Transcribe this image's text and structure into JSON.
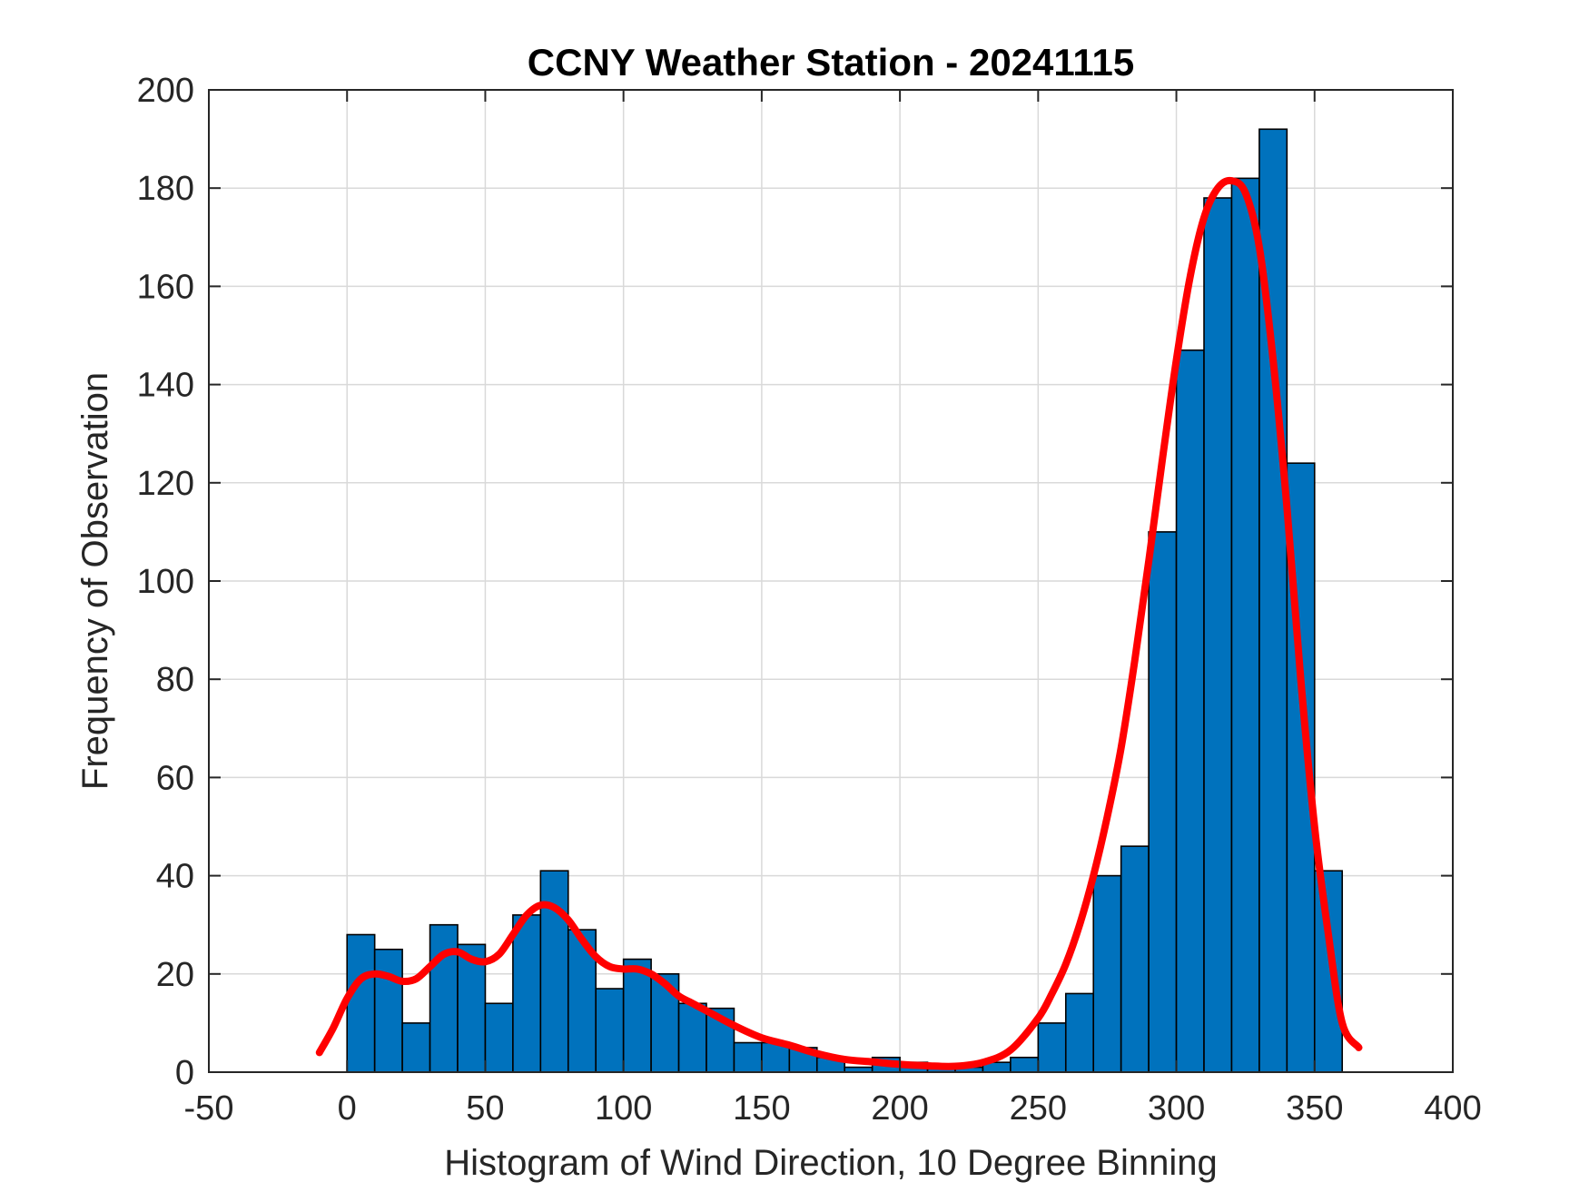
{
  "chart_data": {
    "type": "bar",
    "title": "CCNY Weather Station - 20241115",
    "xlabel": "Histogram of Wind Direction, 10 Degree Binning",
    "ylabel": "Frequency of Observation",
    "xlim": [
      -50,
      400
    ],
    "ylim": [
      0,
      200
    ],
    "xticks": [
      -50,
      0,
      50,
      100,
      150,
      200,
      250,
      300,
      350,
      400
    ],
    "yticks": [
      0,
      20,
      40,
      60,
      80,
      100,
      120,
      140,
      160,
      180,
      200
    ],
    "grid": true,
    "bin_width": 10,
    "bins": [
      {
        "start": 0,
        "value": 28
      },
      {
        "start": 10,
        "value": 25
      },
      {
        "start": 20,
        "value": 10
      },
      {
        "start": 30,
        "value": 30
      },
      {
        "start": 40,
        "value": 26
      },
      {
        "start": 50,
        "value": 14
      },
      {
        "start": 60,
        "value": 32
      },
      {
        "start": 70,
        "value": 41
      },
      {
        "start": 80,
        "value": 29
      },
      {
        "start": 90,
        "value": 17
      },
      {
        "start": 100,
        "value": 23
      },
      {
        "start": 110,
        "value": 20
      },
      {
        "start": 120,
        "value": 14
      },
      {
        "start": 130,
        "value": 13
      },
      {
        "start": 140,
        "value": 6
      },
      {
        "start": 150,
        "value": 6
      },
      {
        "start": 160,
        "value": 5
      },
      {
        "start": 170,
        "value": 3
      },
      {
        "start": 180,
        "value": 1
      },
      {
        "start": 190,
        "value": 3
      },
      {
        "start": 200,
        "value": 2
      },
      {
        "start": 210,
        "value": 1
      },
      {
        "start": 220,
        "value": 1
      },
      {
        "start": 230,
        "value": 2
      },
      {
        "start": 240,
        "value": 3
      },
      {
        "start": 250,
        "value": 10
      },
      {
        "start": 260,
        "value": 16
      },
      {
        "start": 270,
        "value": 40
      },
      {
        "start": 280,
        "value": 46
      },
      {
        "start": 290,
        "value": 110
      },
      {
        "start": 300,
        "value": 147
      },
      {
        "start": 310,
        "value": 178
      },
      {
        "start": 320,
        "value": 182
      },
      {
        "start": 330,
        "value": 192
      },
      {
        "start": 340,
        "value": 124
      },
      {
        "start": 350,
        "value": 41
      }
    ],
    "bar_color": "#0072BD",
    "fit_curve": {
      "name": "density fit",
      "color": "#FF0000",
      "points": [
        [
          -10,
          4
        ],
        [
          -5,
          9
        ],
        [
          0,
          15
        ],
        [
          5,
          19
        ],
        [
          10,
          20
        ],
        [
          15,
          19.5
        ],
        [
          20,
          18.5
        ],
        [
          25,
          19
        ],
        [
          30,
          21.5
        ],
        [
          35,
          24
        ],
        [
          40,
          24.5
        ],
        [
          45,
          23
        ],
        [
          50,
          22.5
        ],
        [
          55,
          24
        ],
        [
          60,
          28
        ],
        [
          65,
          32
        ],
        [
          70,
          34
        ],
        [
          75,
          33.5
        ],
        [
          80,
          31
        ],
        [
          85,
          27
        ],
        [
          90,
          23.5
        ],
        [
          95,
          21.5
        ],
        [
          100,
          21
        ],
        [
          105,
          21
        ],
        [
          110,
          20
        ],
        [
          115,
          18
        ],
        [
          120,
          15.5
        ],
        [
          125,
          14
        ],
        [
          130,
          12.5
        ],
        [
          140,
          9.5
        ],
        [
          150,
          7
        ],
        [
          160,
          5.5
        ],
        [
          170,
          3.8
        ],
        [
          180,
          2.6
        ],
        [
          190,
          2.1
        ],
        [
          200,
          1.6
        ],
        [
          210,
          1.3
        ],
        [
          220,
          1.2
        ],
        [
          230,
          2
        ],
        [
          240,
          4.5
        ],
        [
          250,
          11
        ],
        [
          255,
          16
        ],
        [
          260,
          22
        ],
        [
          265,
          30
        ],
        [
          270,
          40
        ],
        [
          275,
          52
        ],
        [
          280,
          66
        ],
        [
          285,
          84
        ],
        [
          290,
          104
        ],
        [
          295,
          125
        ],
        [
          300,
          145
        ],
        [
          305,
          162
        ],
        [
          310,
          174
        ],
        [
          315,
          180
        ],
        [
          320,
          181.5
        ],
        [
          325,
          179
        ],
        [
          330,
          168
        ],
        [
          335,
          145
        ],
        [
          340,
          115
        ],
        [
          345,
          80
        ],
        [
          350,
          50
        ],
        [
          355,
          28
        ],
        [
          360,
          10
        ],
        [
          366,
          5
        ]
      ]
    }
  }
}
